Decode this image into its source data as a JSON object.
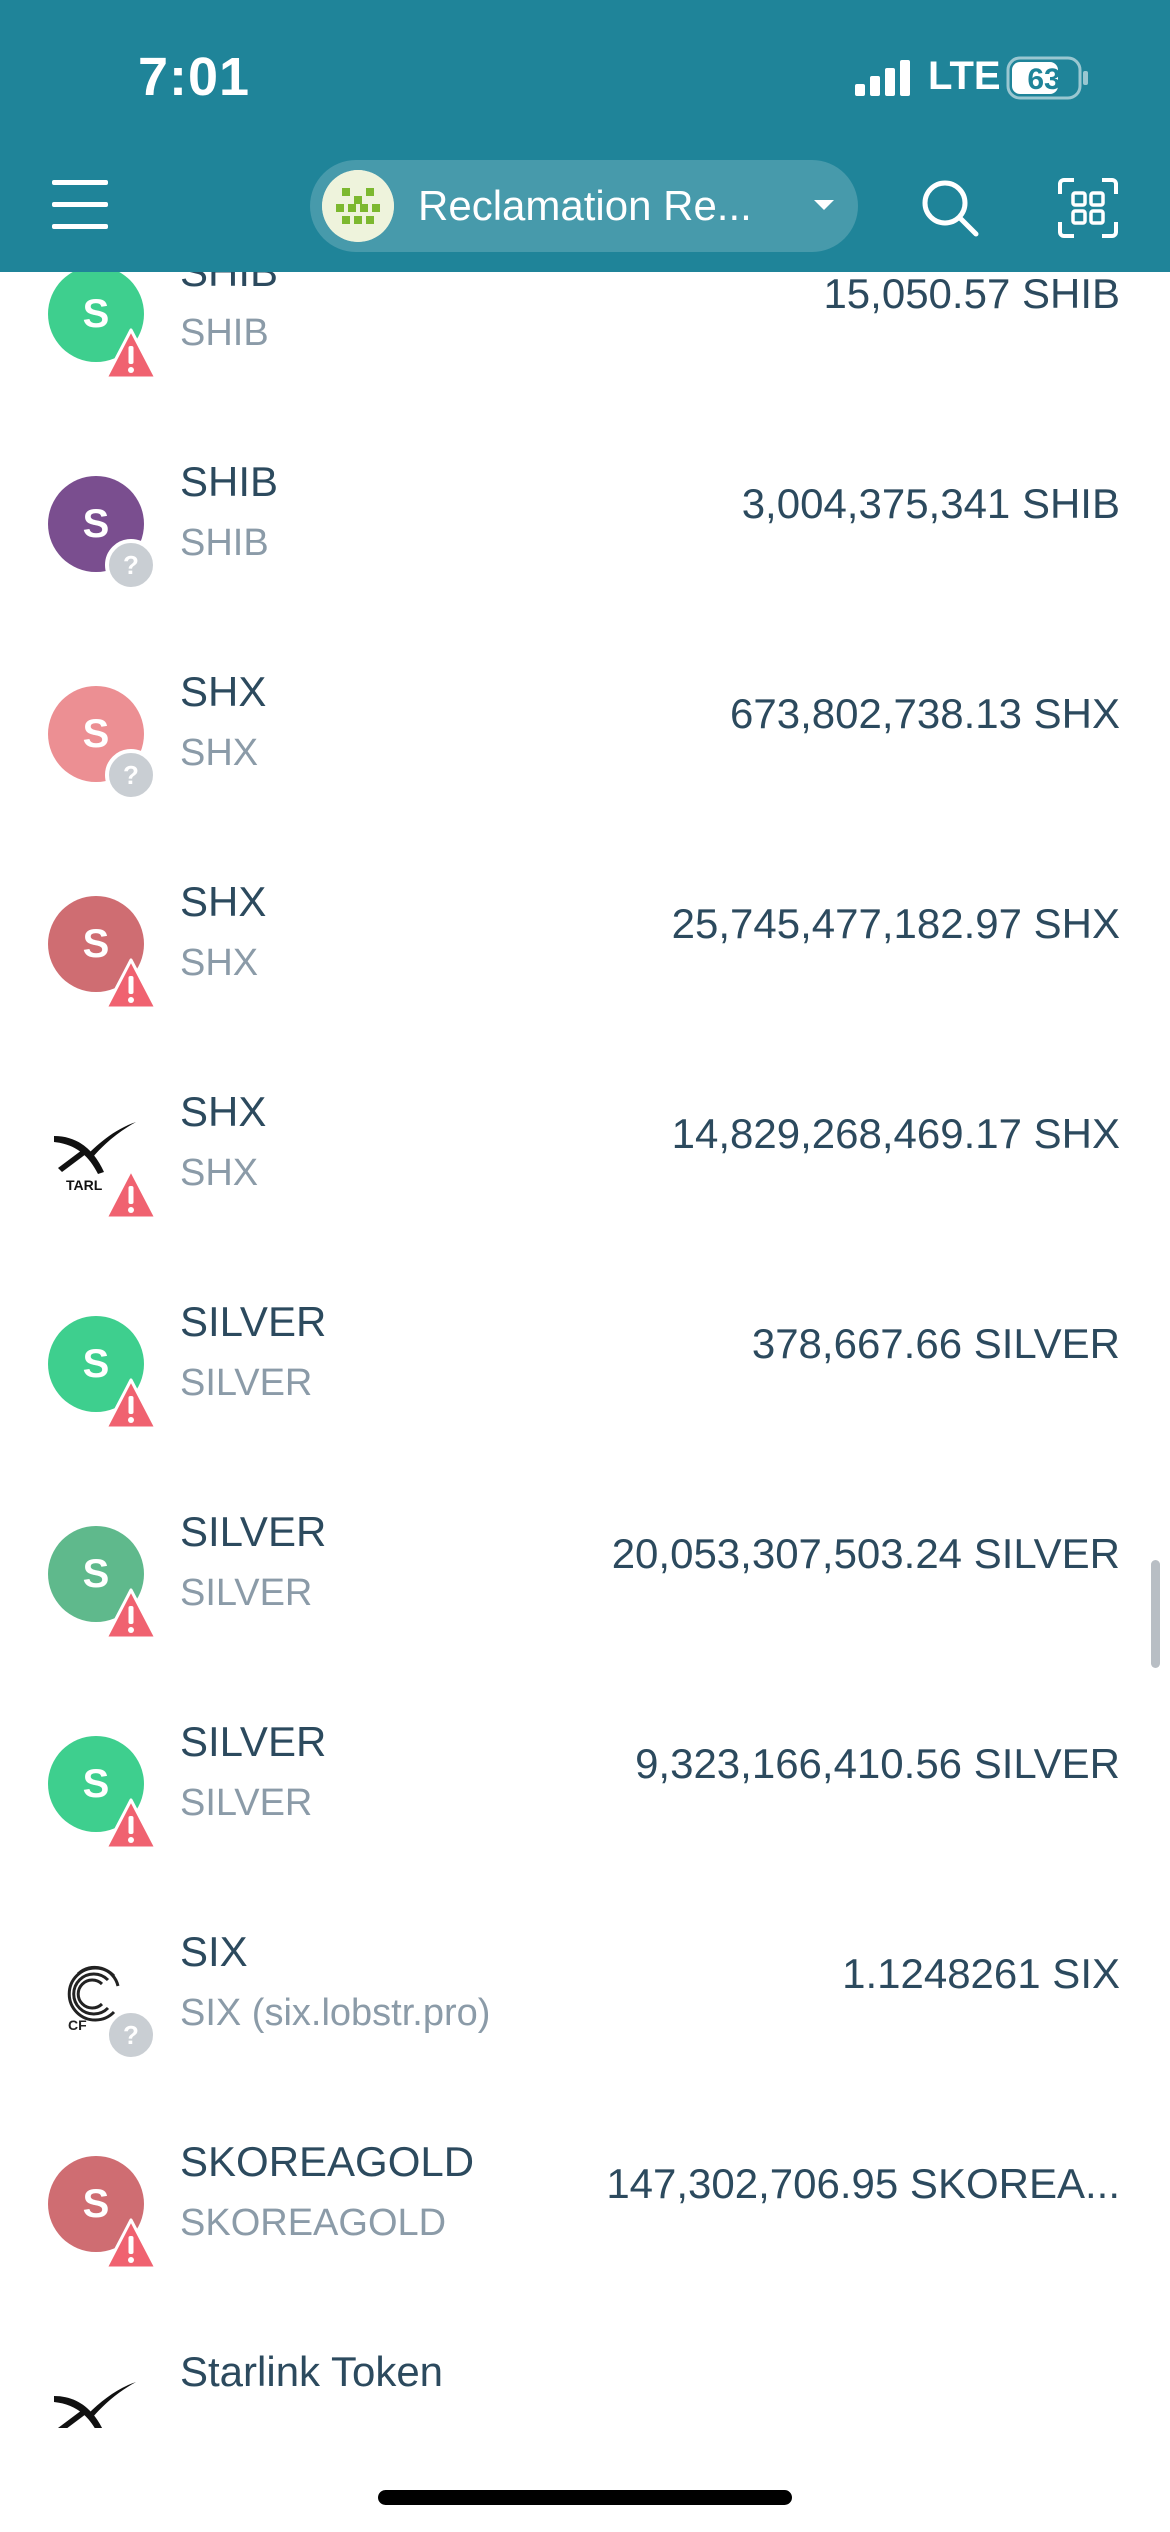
{
  "status_bar": {
    "time": "7:01",
    "network": "LTE",
    "battery": "63"
  },
  "header": {
    "wallet_name": "Reclamation Re...",
    "icons": [
      "menu-icon",
      "wallet-avatar-icon",
      "chevron-down-icon",
      "search-icon",
      "qr-scan-icon"
    ]
  },
  "colors": {
    "header_bg": "#1f8499",
    "warning": "#f06270",
    "unknown": "#c9ced3",
    "text_primary": "#2c4a5e",
    "text_secondary": "#8b9ba8"
  },
  "assets": [
    {
      "code": "SHIB",
      "issuer": "SHIB",
      "amount": "15,050.57 SHIB",
      "avatar_letter": "S",
      "avatar_color": "#3ecf8e",
      "badge": "warning"
    },
    {
      "code": "SHIB",
      "issuer": "SHIB",
      "amount": "3,004,375,341 SHIB",
      "avatar_letter": "S",
      "avatar_color": "#7a4e8f",
      "badge": "unknown"
    },
    {
      "code": "SHX",
      "issuer": "SHX",
      "amount": "673,802,738.13 SHX",
      "avatar_letter": "S",
      "avatar_color": "#ec8f93",
      "badge": "unknown"
    },
    {
      "code": "SHX",
      "issuer": "SHX",
      "amount": "25,745,477,182.97 SHX",
      "avatar_letter": "S",
      "avatar_color": "#cf6d72",
      "badge": "warning"
    },
    {
      "code": "SHX",
      "issuer": "SHX",
      "amount": "14,829,268,469.17 SHX",
      "avatar_logo": "starlink-x-logo",
      "logo_text": "TARL",
      "badge": "warning"
    },
    {
      "code": "SILVER",
      "issuer": "SILVER",
      "amount": "378,667.66 SILVER",
      "avatar_letter": "S",
      "avatar_color": "#3ecf8e",
      "badge": "warning"
    },
    {
      "code": "SILVER",
      "issuer": "SILVER",
      "amount": "20,053,307,503.24 SILVER",
      "avatar_letter": "S",
      "avatar_color": "#5fb98c",
      "badge": "warning"
    },
    {
      "code": "SILVER",
      "issuer": "SILVER",
      "amount": "9,323,166,410.56 SILVER",
      "avatar_letter": "S",
      "avatar_color": "#3ecf8e",
      "badge": "warning"
    },
    {
      "code": "SIX",
      "issuer": "SIX (six.lobstr.pro)",
      "amount": "1.1248261 SIX",
      "avatar_logo": "six-network-logo",
      "logo_text": "CF",
      "badge": "unknown"
    },
    {
      "code": "SKOREAGOLD",
      "issuer": "SKOREAGOLD",
      "amount": "147,302,706.95 SKOREA...",
      "avatar_letter": "S",
      "avatar_color": "#cf6d72",
      "badge": "warning"
    },
    {
      "code": "Starlink Token",
      "issuer": "",
      "amount": "",
      "avatar_logo": "starlink-x-logo",
      "badge": "none"
    }
  ]
}
